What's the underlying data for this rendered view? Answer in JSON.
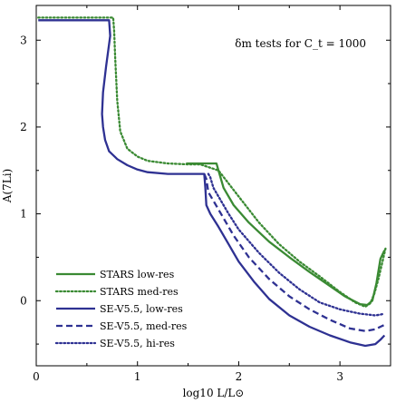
{
  "chart_data": {
    "type": "line",
    "annotation": "δm tests for C_t = 1000",
    "xlabel": "log10 L/L⊙",
    "ylabel": "A(7Li)",
    "xlim": [
      0,
      3.5
    ],
    "ylim": [
      -0.75,
      3.4
    ],
    "xticks": [
      0,
      1,
      2,
      3
    ],
    "yticks": [
      0,
      1,
      2,
      3
    ],
    "grid": false,
    "legend_position": "bottom-left",
    "series": [
      {
        "name": "STARS low-res",
        "color": "#3a8a33",
        "dash": "solid",
        "x": [
          1.48,
          1.55,
          1.65,
          1.75,
          1.78,
          1.8,
          1.85,
          1.95,
          2.1,
          2.3,
          2.5,
          2.7,
          2.9,
          3.05,
          3.2,
          3.27,
          3.32,
          3.36,
          3.4,
          3.44
        ],
        "y": [
          1.58,
          1.58,
          1.58,
          1.58,
          1.58,
          1.5,
          1.3,
          1.1,
          0.9,
          0.68,
          0.5,
          0.33,
          0.17,
          0.05,
          -0.04,
          -0.05,
          0.0,
          0.2,
          0.48,
          0.58
        ]
      },
      {
        "name": "STARS med-res",
        "color": "#3a8a33",
        "dash": "dotted",
        "x": [
          0.02,
          0.3,
          0.6,
          0.76,
          0.77,
          0.78,
          0.8,
          0.83,
          0.9,
          1.0,
          1.1,
          1.3,
          1.5,
          1.6,
          1.62,
          1.8,
          2.0,
          2.2,
          2.4,
          2.6,
          2.8,
          3.0,
          3.15,
          3.25,
          3.3,
          3.34,
          3.38,
          3.42,
          3.45
        ],
        "y": [
          3.26,
          3.26,
          3.26,
          3.26,
          3.1,
          2.8,
          2.3,
          1.95,
          1.75,
          1.66,
          1.61,
          1.58,
          1.57,
          1.57,
          1.57,
          1.5,
          1.2,
          0.9,
          0.65,
          0.45,
          0.28,
          0.1,
          -0.02,
          -0.07,
          -0.03,
          0.08,
          0.25,
          0.45,
          0.6
        ]
      },
      {
        "name": "SE-V5.5, low-res",
        "color": "#2e3192",
        "dash": "solid",
        "x": [
          0.02,
          0.3,
          0.5,
          0.6,
          0.72,
          0.73,
          0.69,
          0.66,
          0.65,
          0.66,
          0.68,
          0.72,
          0.8,
          0.9,
          1.0,
          1.1,
          1.3,
          1.5,
          1.66,
          1.67,
          1.68,
          1.72,
          1.8,
          1.9,
          2.0,
          2.15,
          2.3,
          2.5,
          2.7,
          2.9,
          3.1,
          3.25,
          3.35,
          3.4,
          3.44
        ],
        "y": [
          3.23,
          3.23,
          3.23,
          3.23,
          3.23,
          3.05,
          2.7,
          2.4,
          2.15,
          2.0,
          1.85,
          1.72,
          1.63,
          1.56,
          1.51,
          1.48,
          1.46,
          1.46,
          1.46,
          1.3,
          1.1,
          1.0,
          0.85,
          0.65,
          0.45,
          0.22,
          0.02,
          -0.17,
          -0.3,
          -0.4,
          -0.48,
          -0.52,
          -0.5,
          -0.45,
          -0.4
        ]
      },
      {
        "name": "SE-V5.5, med-res",
        "color": "#2e3192",
        "dash": "dashed",
        "x": [
          1.66,
          1.68,
          1.7,
          1.75,
          1.85,
          1.95,
          2.1,
          2.3,
          2.5,
          2.7,
          2.9,
          3.1,
          3.25,
          3.35,
          3.4,
          3.44
        ],
        "y": [
          1.46,
          1.4,
          1.25,
          1.15,
          0.95,
          0.75,
          0.5,
          0.25,
          0.05,
          -0.1,
          -0.22,
          -0.32,
          -0.35,
          -0.33,
          -0.3,
          -0.28
        ]
      },
      {
        "name": "SE-V5.5, hi-res",
        "color": "#2e3192",
        "dash": "dotted",
        "x": [
          1.7,
          1.72,
          1.75,
          1.8,
          1.9,
          2.0,
          2.2,
          2.4,
          2.6,
          2.8,
          3.0,
          3.2,
          3.35,
          3.4,
          3.44
        ],
        "y": [
          1.46,
          1.42,
          1.3,
          1.2,
          1.0,
          0.82,
          0.55,
          0.32,
          0.13,
          -0.02,
          -0.1,
          -0.15,
          -0.17,
          -0.16,
          -0.15
        ]
      }
    ]
  }
}
